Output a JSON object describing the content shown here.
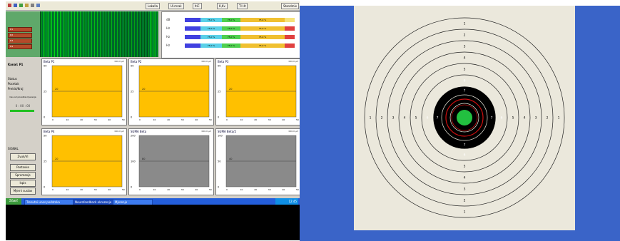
{
  "toolbar": {
    "items": [
      {
        "label": "Lakalla"
      },
      {
        "label": "Ul.mrak"
      },
      {
        "label": "ltiC"
      },
      {
        "label": "K,Kv"
      },
      {
        "label": "Tl Ht"
      },
      {
        "label": "Standmix"
      }
    ]
  },
  "left_panel": {
    "bars": [
      "P.1",
      "P.2",
      "P.3",
      "P.4"
    ]
  },
  "levels": {
    "rows": [
      {
        "label": "dB",
        "segments": [
          {
            "text": "",
            "color": "#4040e0",
            "w": 22
          },
          {
            "text": "75,0 %",
            "color": "#5ad0e8",
            "w": 30
          },
          {
            "text": "75,0 %",
            "color": "#4fd04f",
            "w": 26
          },
          {
            "text": "75,0 %",
            "color": "#f0c030",
            "w": 62
          },
          {
            "text": "",
            "color": "#f6e27a",
            "w": 14
          }
        ]
      },
      {
        "label": "Hz",
        "segments": [
          {
            "text": "",
            "color": "#4040e0",
            "w": 22
          },
          {
            "text": "75,0 %",
            "color": "#5ad0e8",
            "w": 30
          },
          {
            "text": "75,0 %",
            "color": "#4fd04f",
            "w": 26
          },
          {
            "text": "75,0 %",
            "color": "#f0c030",
            "w": 62
          },
          {
            "text": "",
            "color": "#e04040",
            "w": 14
          }
        ]
      },
      {
        "label": "Hz",
        "segments": [
          {
            "text": "",
            "color": "#4040e0",
            "w": 22
          },
          {
            "text": "75,0 %",
            "color": "#5ad0e8",
            "w": 30
          },
          {
            "text": "75,0 %",
            "color": "#4fd04f",
            "w": 26
          },
          {
            "text": "75,0 %",
            "color": "#f0c030",
            "w": 62
          },
          {
            "text": "",
            "color": "#e04040",
            "w": 14
          }
        ]
      },
      {
        "label": "Hz",
        "segments": [
          {
            "text": "",
            "color": "#4040e0",
            "w": 22
          },
          {
            "text": "75,0 %",
            "color": "#5ad0e8",
            "w": 30
          },
          {
            "text": "75,0 %",
            "color": "#4fd04f",
            "w": 26
          },
          {
            "text": "75,0 %",
            "color": "#f0c030",
            "w": 62
          },
          {
            "text": "",
            "color": "#e04040",
            "w": 14
          }
        ]
      }
    ]
  },
  "side": {
    "title": "Kanal: P1",
    "labels": [
      "Status",
      "Pocetak",
      "Prekid/Kraj"
    ],
    "time_label": "Cas od pocetka mjerenja",
    "time_value": "0 : 00 : 00",
    "section": "SIGNAL",
    "buttons": [
      "Zvuk/Vi",
      "Postavke",
      "Spremanje",
      "Ispis",
      "Mjerni sustav"
    ]
  },
  "charts": [
    {
      "title": "Beta P1",
      "value": "000,0 µV",
      "fill": "#ffc000",
      "yaxis": [
        "50",
        "25",
        "0"
      ],
      "marker": "20"
    },
    {
      "title": "Beta P2",
      "value": "000,0 µV",
      "fill": "#ffc000",
      "yaxis": [
        "50",
        "25",
        "0"
      ],
      "marker": "20"
    },
    {
      "title": "Beta P3",
      "value": "000,0 µV",
      "fill": "#ffc000",
      "yaxis": [
        "50",
        "25",
        "0"
      ],
      "marker": "20"
    },
    {
      "title": "Beta P4",
      "value": "000,0 µV",
      "fill": "#ffc000",
      "yaxis": [
        "50",
        "25",
        "0"
      ],
      "marker": "20"
    },
    {
      "title": "SUMA Beta",
      "value": "000,0 µV",
      "fill": "#8a8a8a",
      "yaxis": [
        "200",
        "100",
        "0"
      ],
      "marker": "80"
    },
    {
      "title": "SUMA Beta/2",
      "value": "000,0 µV",
      "fill": "#8a8a8a",
      "yaxis": [
        "100",
        "50",
        "0"
      ],
      "marker": "40"
    }
  ],
  "chart_xticks": [
    "0",
    "10",
    "20",
    "30",
    "40",
    "50"
  ],
  "taskbar": {
    "start": "Start",
    "tasks": [
      "Trenutni unos podataka",
      "Neurofeedback okruzenje",
      "Mjerenje"
    ],
    "clock": "12:45"
  },
  "target": {
    "ring_numbers": [
      "1",
      "2",
      "3",
      "4",
      "5",
      "6",
      "7",
      "8"
    ]
  }
}
